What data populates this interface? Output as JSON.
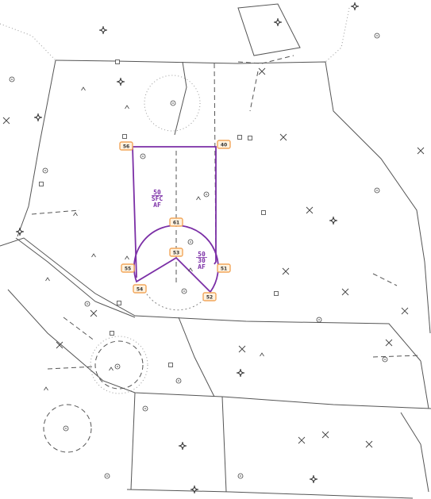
{
  "colors": {
    "airspace": "#7b2fa6",
    "label_border": "#f2a65a",
    "label_fill": "#fff3e0",
    "ink": "#333333"
  },
  "waypoints": [
    "56",
    "40",
    "61",
    "53",
    "55",
    "51",
    "54",
    "52"
  ],
  "altitude_blocks": {
    "upper": {
      "top": "50",
      "bottom": "SFC",
      "class": "AF"
    },
    "lower": {
      "top": "50",
      "bottom": "30",
      "class": "AF"
    }
  },
  "icons": [
    "waypoint-star-icon",
    "navaid-x-icon",
    "obstacle-caret-icon",
    "small-circle-icon",
    "small-square-icon"
  ]
}
